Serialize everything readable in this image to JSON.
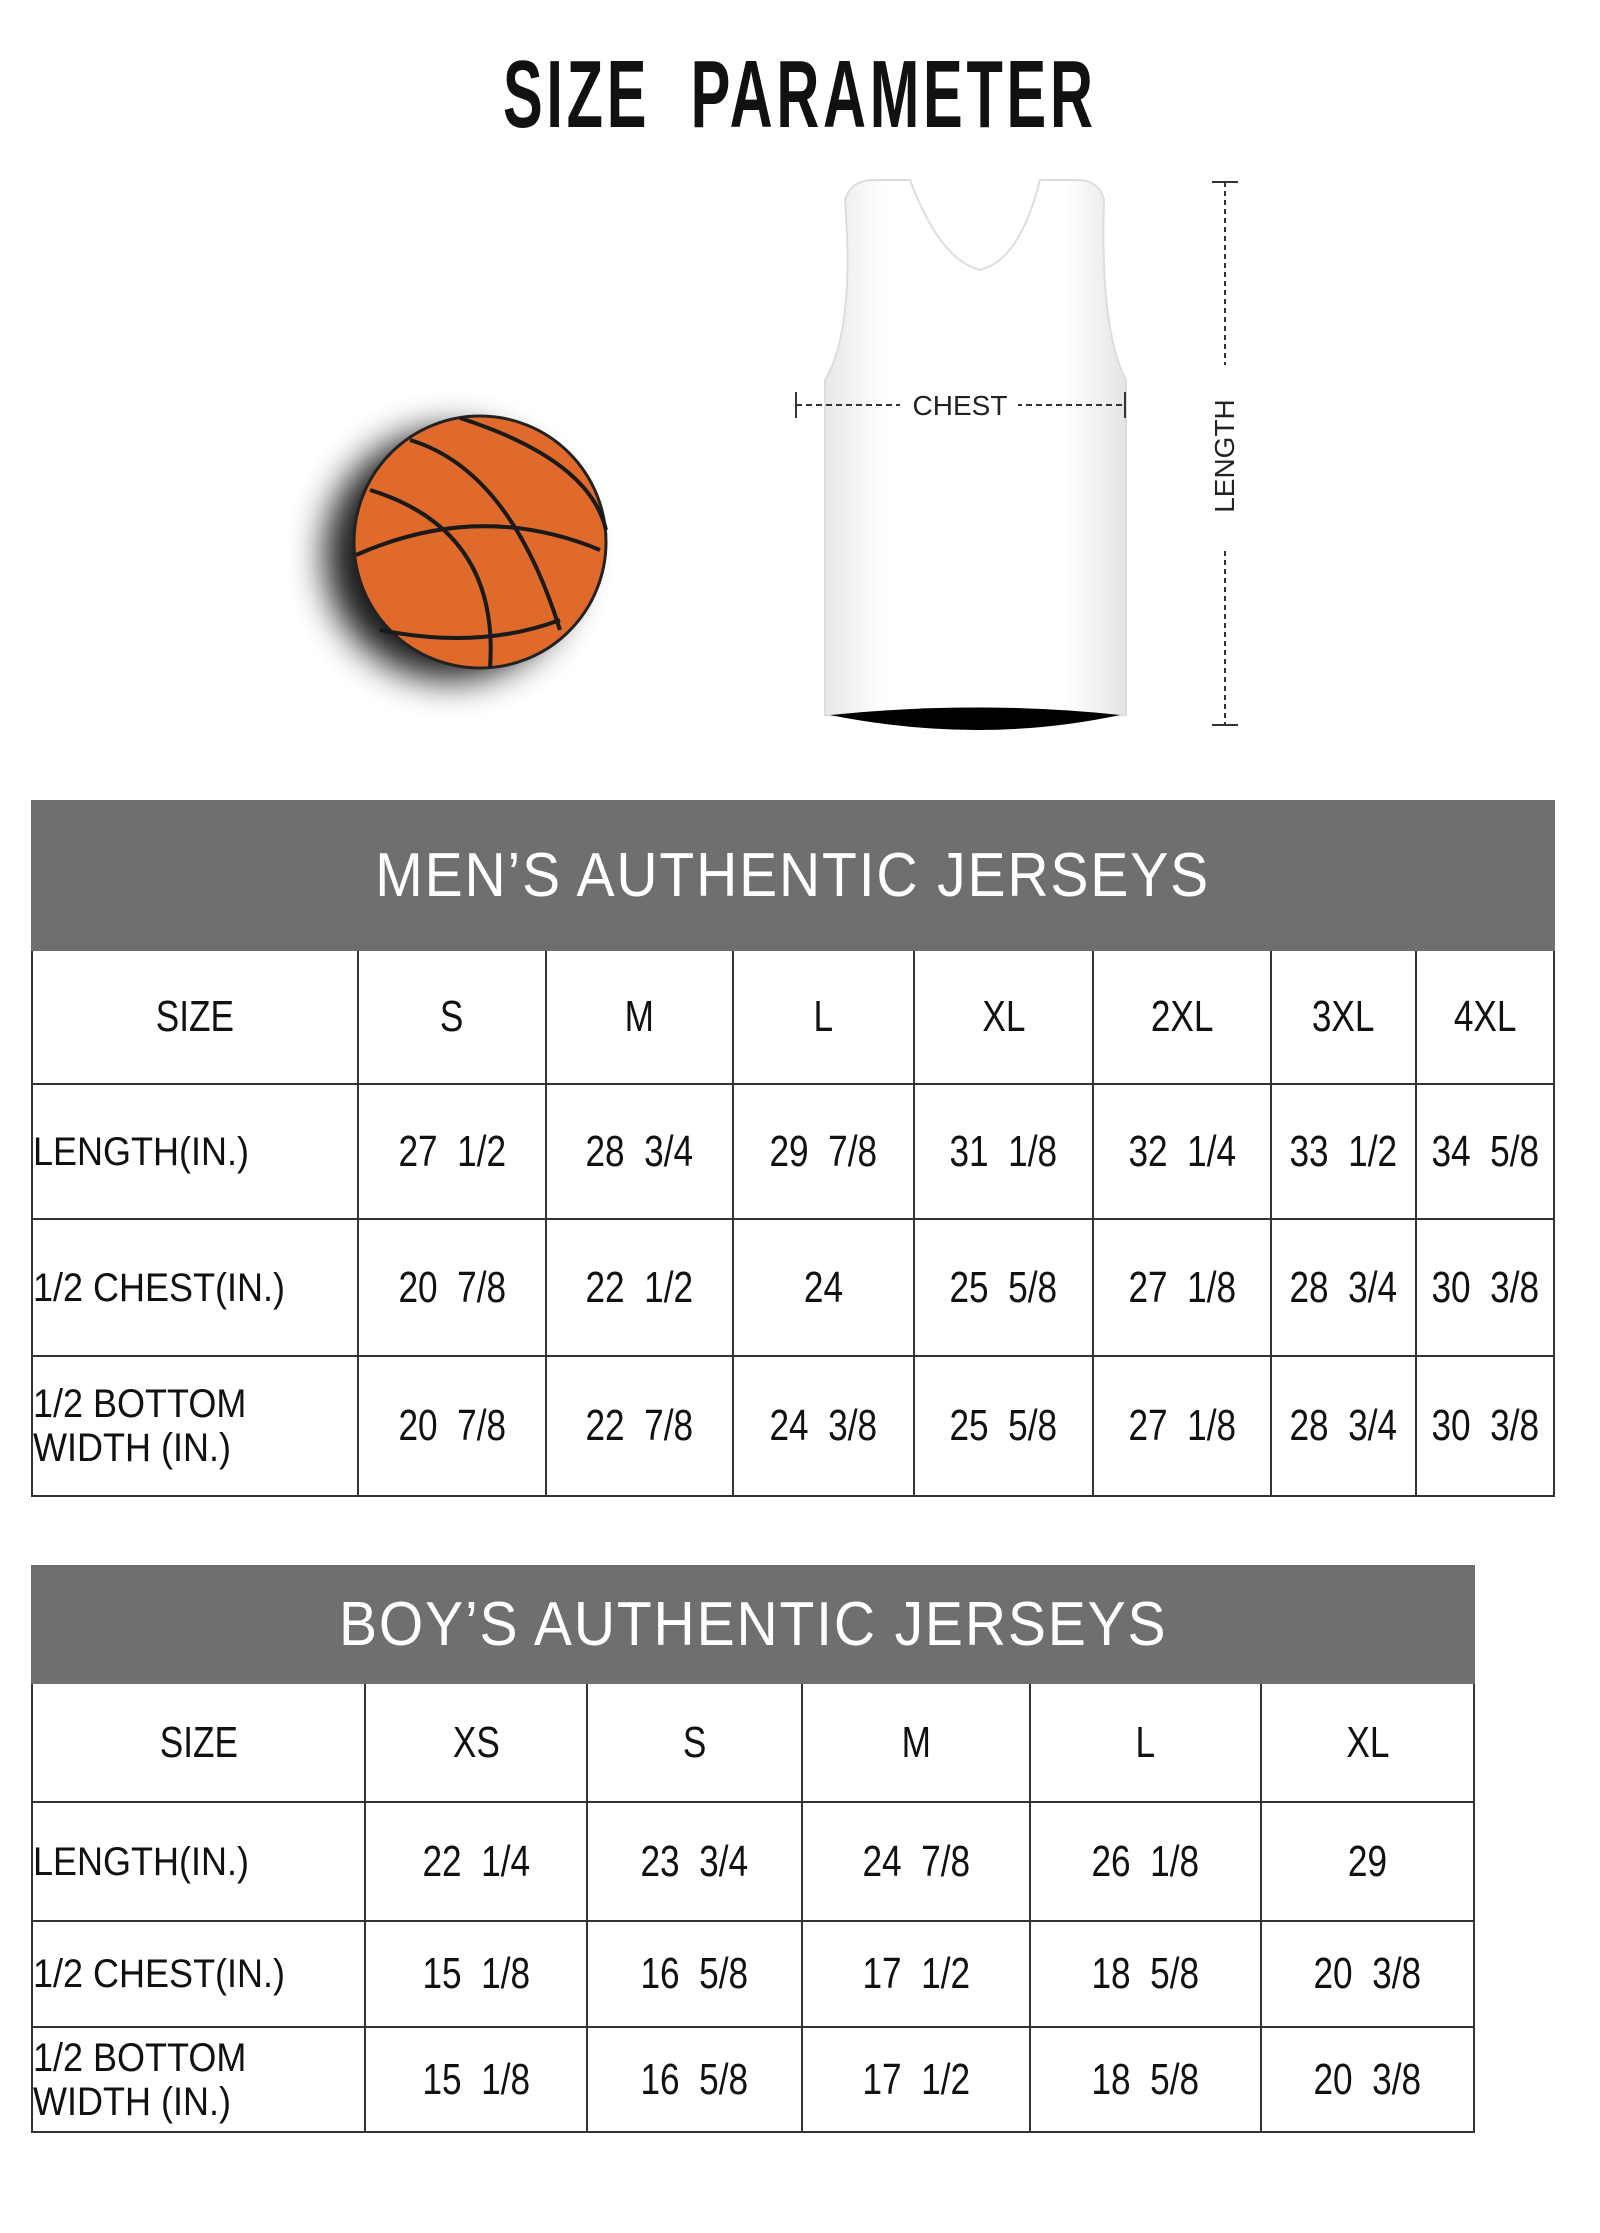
{
  "title": "SIZE  PARAMETER",
  "diagram": {
    "chest_label": "CHEST",
    "length_label": "LENGTH"
  },
  "colors": {
    "header_bg": "#6f6f6f",
    "ball": "#e06a2c"
  },
  "mens": {
    "title": "MEN’S AUTHENTIC JERSEYS",
    "size_label": "SIZE",
    "sizes": [
      "S",
      "M",
      "L",
      "XL",
      "2XL",
      "3XL",
      "4XL"
    ],
    "rows": [
      {
        "label": "LENGTH(IN.)",
        "values": [
          "27  1/2",
          "28  3/4",
          "29  7/8",
          "31  1/8",
          "32  1/4",
          "33  1/2",
          "34  5/8"
        ]
      },
      {
        "label": "1/2 CHEST(IN.)",
        "values": [
          "20  7/8",
          "22  1/2",
          "24",
          "25  5/8",
          "27  1/8",
          "28  3/4",
          "30  3/8"
        ]
      },
      {
        "label": "1/2 BOTTOM\n WIDTH  (IN.)",
        "values": [
          "20  7/8",
          "22  7/8",
          "24  3/8",
          "25  5/8",
          "27  1/8",
          "28  3/4",
          "30  3/8"
        ]
      }
    ]
  },
  "boys": {
    "title": "BOY’S AUTHENTIC JERSEYS",
    "size_label": "SIZE",
    "sizes": [
      "XS",
      "S",
      "M",
      "L",
      "XL"
    ],
    "rows": [
      {
        "label": "LENGTH(IN.)",
        "values": [
          "22  1/4",
          "23  3/4",
          "24  7/8",
          "26  1/8",
          "29"
        ]
      },
      {
        "label": "1/2 CHEST(IN.)",
        "values": [
          "15  1/8",
          "16  5/8",
          "17  1/2",
          "18  5/8",
          "20  3/8"
        ]
      },
      {
        "label": " 1/2 BOTTOM\n   WIDTH  (IN.)",
        "values": [
          "15  1/8",
          "16  5/8",
          "17  1/2",
          "18  5/8",
          "20  3/8"
        ]
      }
    ]
  }
}
